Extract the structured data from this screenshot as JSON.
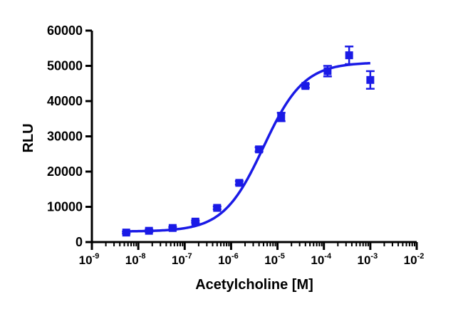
{
  "chart_data": {
    "type": "scatter",
    "title": "",
    "xlabel": "Acetylcholine [M]",
    "ylabel": "RLU",
    "x_scale": "log10",
    "xlim": [
      1e-09,
      0.01
    ],
    "ylim": [
      0,
      60000
    ],
    "x_ticks": [
      {
        "base": "10",
        "exp": "-9",
        "value": 1e-09
      },
      {
        "base": "10",
        "exp": "-8",
        "value": 1e-08
      },
      {
        "base": "10",
        "exp": "-7",
        "value": 1e-07
      },
      {
        "base": "10",
        "exp": "-6",
        "value": 1e-06
      },
      {
        "base": "10",
        "exp": "-5",
        "value": 1e-05
      },
      {
        "base": "10",
        "exp": "-4",
        "value": 0.0001
      },
      {
        "base": "10",
        "exp": "-3",
        "value": 0.001
      },
      {
        "base": "10",
        "exp": "-2",
        "value": 0.01
      }
    ],
    "y_ticks": [
      {
        "label": "0",
        "value": 0
      },
      {
        "label": "10000",
        "value": 10000
      },
      {
        "label": "20000",
        "value": 20000
      },
      {
        "label": "30000",
        "value": 30000
      },
      {
        "label": "40000",
        "value": 40000
      },
      {
        "label": "50000",
        "value": 50000
      },
      {
        "label": "60000",
        "value": 60000
      }
    ],
    "grid": false,
    "color": "#1a1ae6",
    "points": [
      {
        "x": 5.5e-09,
        "y": 2700,
        "err": 300
      },
      {
        "x": 1.7e-08,
        "y": 3200,
        "err": 300
      },
      {
        "x": 5.5e-08,
        "y": 4000,
        "err": 300
      },
      {
        "x": 1.7e-07,
        "y": 5800,
        "err": 300
      },
      {
        "x": 5e-07,
        "y": 9700,
        "err": 400
      },
      {
        "x": 1.5e-06,
        "y": 16800,
        "err": 500
      },
      {
        "x": 4e-06,
        "y": 26300,
        "err": 600
      },
      {
        "x": 1.2e-05,
        "y": 35500,
        "err": 1200
      },
      {
        "x": 4e-05,
        "y": 44300,
        "err": 500
      },
      {
        "x": 0.00012,
        "y": 48500,
        "err": 1500
      },
      {
        "x": 0.00035,
        "y": 53000,
        "err": 2500
      },
      {
        "x": 0.001,
        "y": 46000,
        "err": 2500
      }
    ],
    "fit": {
      "model": "sigmoidal dose-response",
      "bottom": 3000,
      "top": 51000,
      "ec50": 5e-06,
      "hill": 1.0
    }
  }
}
